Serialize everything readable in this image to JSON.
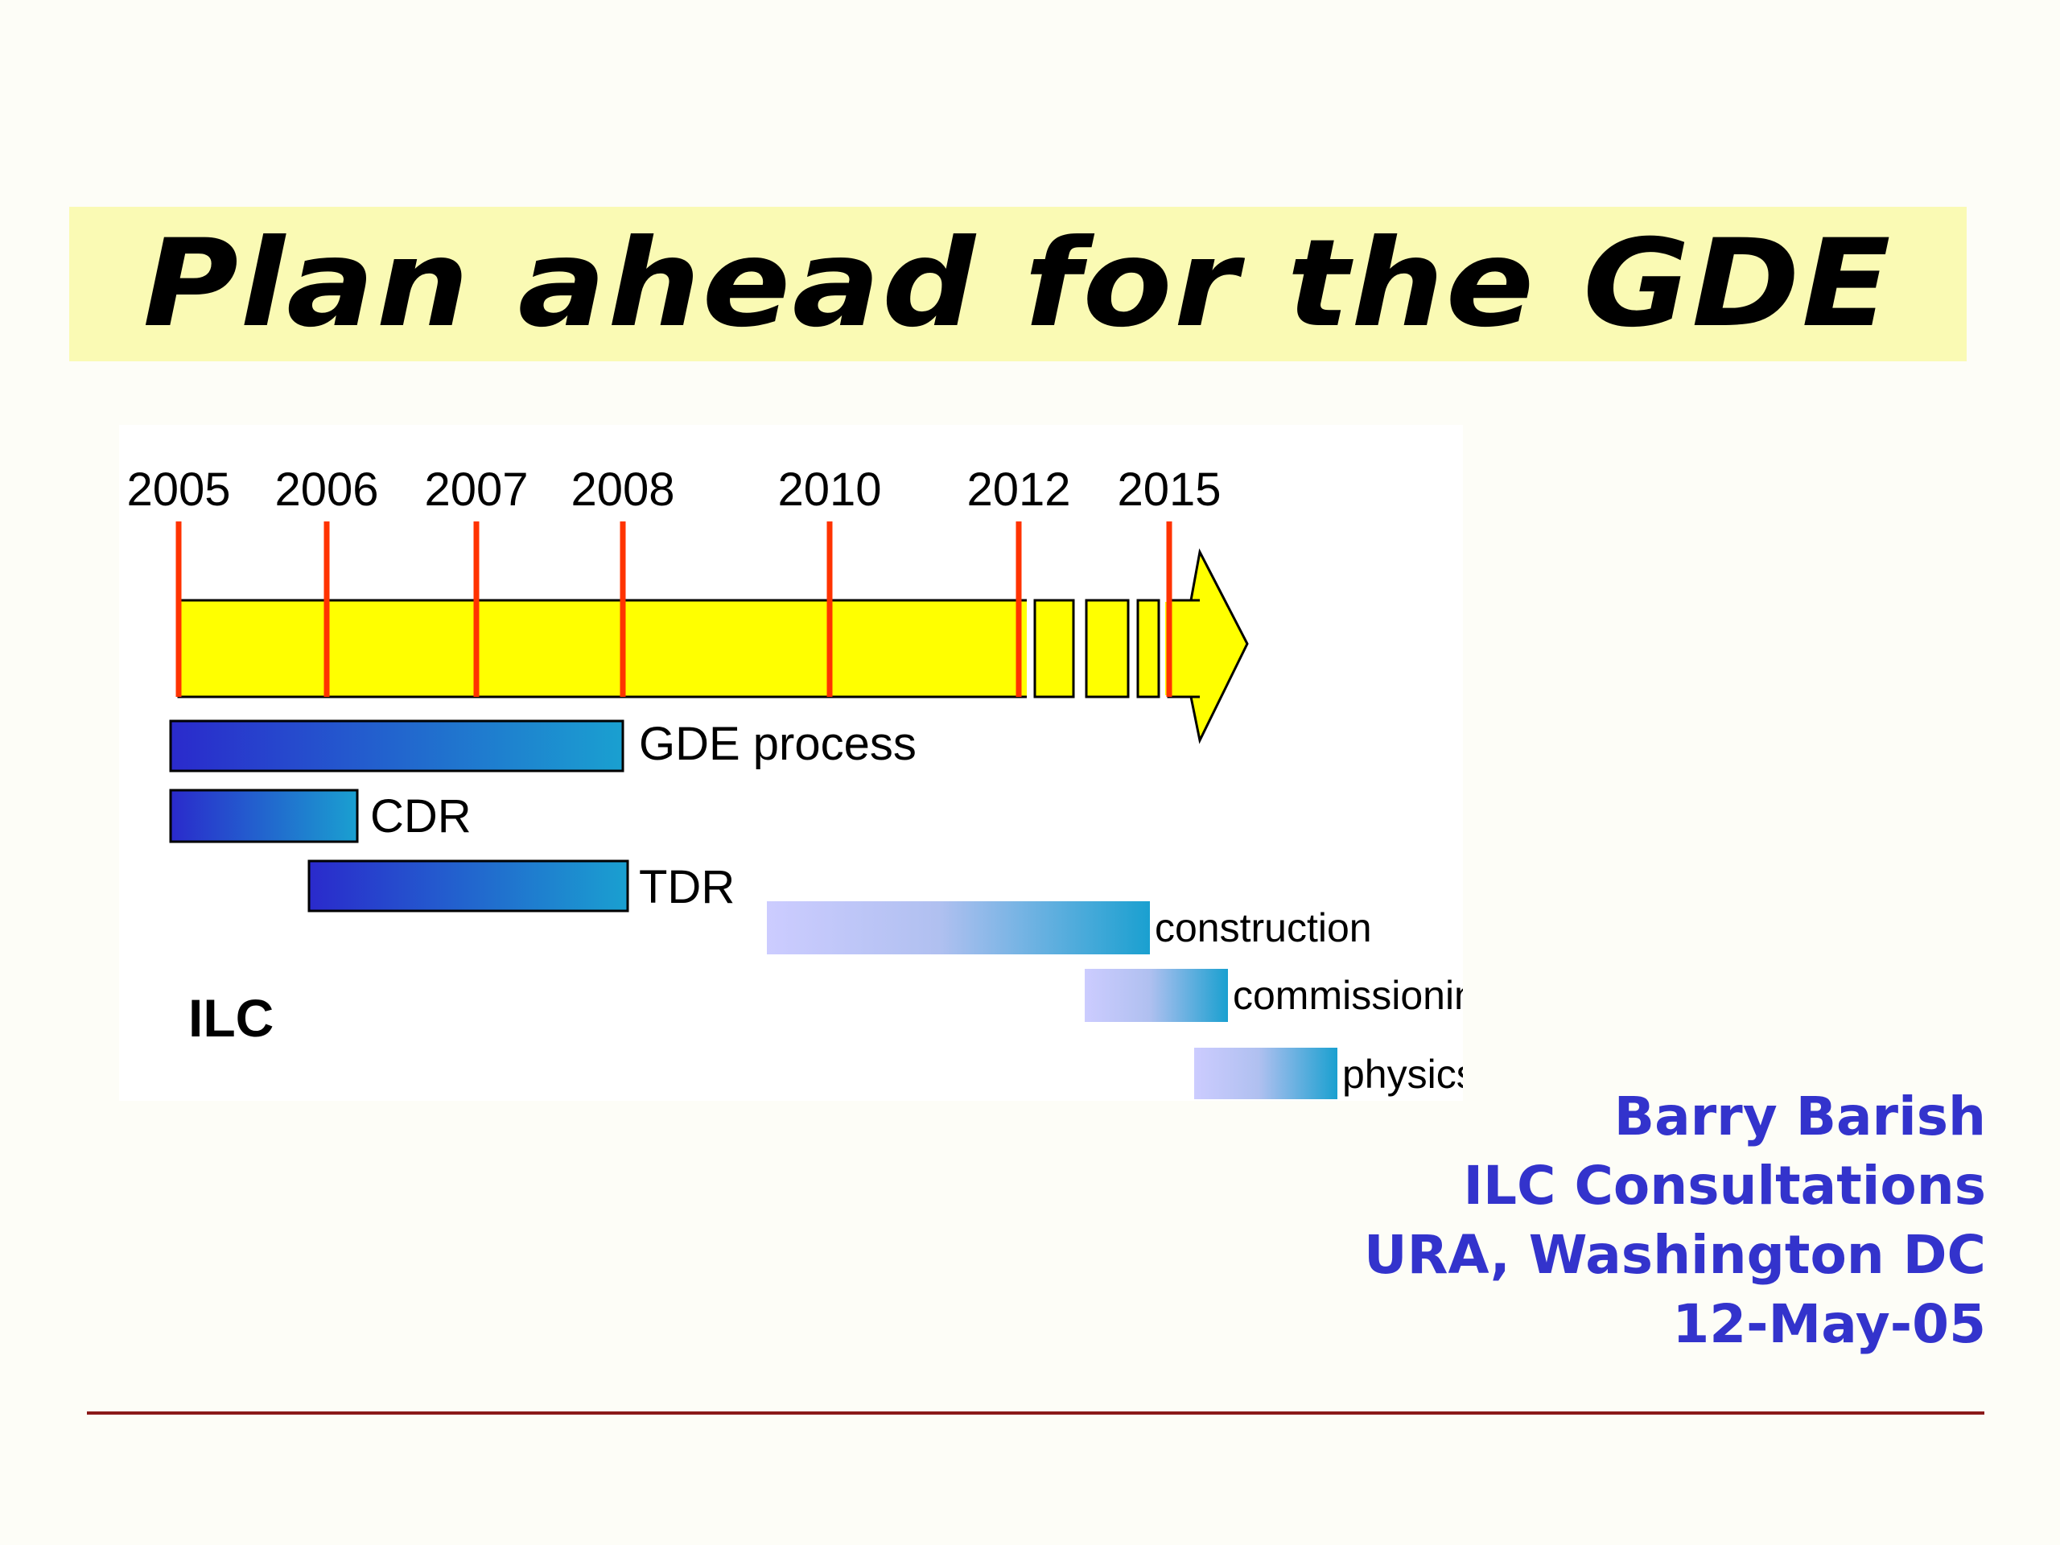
{
  "slide": {
    "title": "Plan ahead for the GDE"
  },
  "timeline": {
    "years": [
      "2005",
      "2006",
      "2007",
      "2008",
      "2010",
      "2012",
      "2015"
    ],
    "program_label": "ILC",
    "phases": [
      {
        "label": "GDE process",
        "style": "dark"
      },
      {
        "label": "CDR",
        "style": "dark"
      },
      {
        "label": "TDR",
        "style": "dark"
      },
      {
        "label": "construction",
        "style": "light"
      },
      {
        "label": "commissioning",
        "style": "light"
      },
      {
        "label": "physics",
        "style": "light"
      }
    ],
    "colors": {
      "arrow_fill": "#ffff00",
      "year_marker": "#ff3300",
      "dark_bar_start": "#2a2acc",
      "dark_bar_end": "#1aa0d0",
      "light_bar_start": "#ccccff",
      "light_bar_end": "#1aa0d0"
    }
  },
  "credits": {
    "author": "Barry Barish",
    "event": "ILC Consultations",
    "location": "URA, Washington DC",
    "date": "12-May-05"
  },
  "colors": {
    "title_band": "#fafab4",
    "credits_text": "#3333cc",
    "footer_rule": "#8b1a1a",
    "background": "#fdfdf7"
  }
}
